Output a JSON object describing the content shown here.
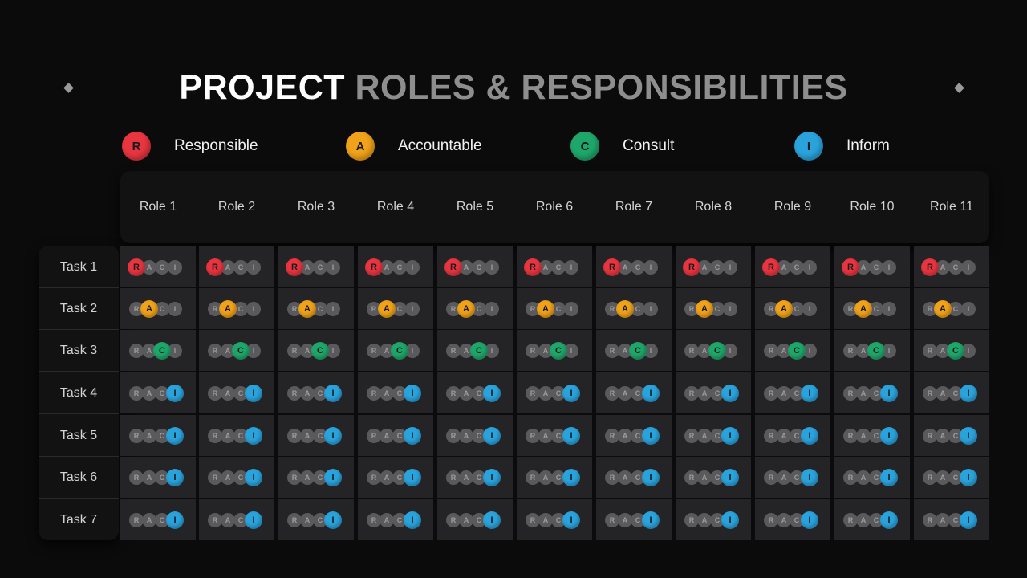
{
  "title": {
    "part1": "PROJECT",
    "part2": "ROLES & RESPONSIBILITIES"
  },
  "legend": [
    {
      "letter": "R",
      "label": "Responsible",
      "color": "#e83540"
    },
    {
      "letter": "A",
      "label": "Accountable",
      "color": "#f0a21a"
    },
    {
      "letter": "C",
      "label": "Consult",
      "color": "#1fa76b"
    },
    {
      "letter": "I",
      "label": "Inform",
      "color": "#2aa3dc"
    }
  ],
  "raci_letters": [
    "R",
    "A",
    "C",
    "I"
  ],
  "roles": [
    "Role 1",
    "Role 2",
    "Role 3",
    "Role 4",
    "Role 5",
    "Role 6",
    "Role 7",
    "Role 8",
    "Role 9",
    "Role 10",
    "Role 11"
  ],
  "tasks": [
    {
      "label": "Task 1",
      "assignment": "R"
    },
    {
      "label": "Task 2",
      "assignment": "A"
    },
    {
      "label": "Task 3",
      "assignment": "C"
    },
    {
      "label": "Task 4",
      "assignment": "I"
    },
    {
      "label": "Task 5",
      "assignment": "I"
    },
    {
      "label": "Task 6",
      "assignment": "I"
    },
    {
      "label": "Task 7",
      "assignment": "I"
    }
  ]
}
